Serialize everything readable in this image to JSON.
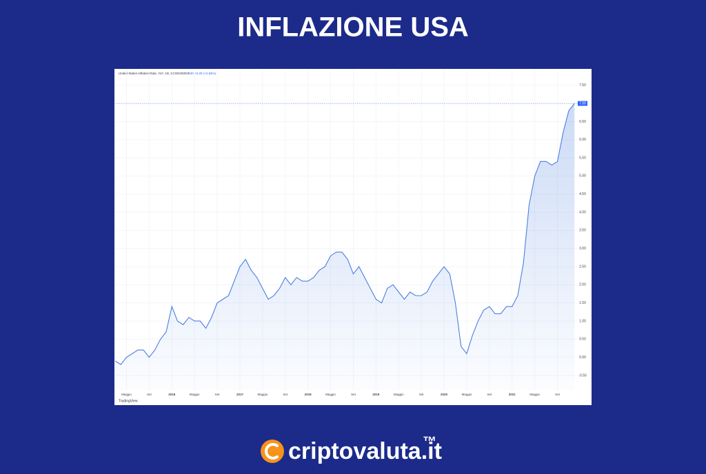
{
  "header": {
    "title": "INFLAZIONE USA"
  },
  "chart_data": {
    "type": "line",
    "legend_text": "United States Inflation Rate, YoY, 1D, ECONOMICS",
    "legend_value": "7.00 +0.20 (+2.94%)",
    "last_label": "7.00",
    "watermark": "TradingView",
    "categories": [
      null,
      null,
      "Maggio",
      null,
      null,
      null,
      "Set",
      null,
      null,
      null,
      "2016",
      null,
      null,
      null,
      "Maggio",
      null,
      null,
      null,
      "Set",
      null,
      null,
      null,
      "2017",
      null,
      null,
      null,
      "Maggio",
      null,
      null,
      null,
      "Set",
      null,
      null,
      null,
      "2018",
      null,
      null,
      null,
      "Maggio",
      null,
      null,
      null,
      "Set",
      null,
      null,
      null,
      "2019",
      null,
      null,
      null,
      "Maggio",
      null,
      null,
      null,
      "Set",
      null,
      null,
      null,
      "2020",
      null,
      null,
      null,
      "Maggio",
      null,
      null,
      null,
      "Set",
      null,
      null,
      null,
      "2021",
      null,
      null,
      null,
      "Maggio",
      null,
      null,
      null,
      "Set",
      null,
      null,
      null
    ],
    "series": [
      {
        "name": "United States Inflation Rate",
        "color": "#4a7ee0",
        "values": [
          -0.1,
          -0.2,
          0.0,
          0.1,
          0.2,
          0.2,
          0.0,
          0.2,
          0.5,
          0.7,
          1.4,
          1.0,
          0.9,
          1.1,
          1.0,
          1.0,
          0.8,
          1.1,
          1.5,
          1.6,
          1.7,
          2.1,
          2.5,
          2.7,
          2.4,
          2.2,
          1.9,
          1.6,
          1.7,
          1.9,
          2.2,
          2.0,
          2.2,
          2.1,
          2.1,
          2.2,
          2.4,
          2.5,
          2.8,
          2.9,
          2.9,
          2.7,
          2.3,
          2.5,
          2.2,
          1.9,
          1.6,
          1.5,
          1.9,
          2.0,
          1.8,
          1.6,
          1.8,
          1.7,
          1.7,
          1.8,
          2.1,
          2.3,
          2.5,
          2.3,
          1.5,
          0.3,
          0.1,
          0.6,
          1.0,
          1.3,
          1.4,
          1.2,
          1.2,
          1.4,
          1.4,
          1.7,
          2.6,
          4.2,
          5.0,
          5.4,
          5.4,
          5.3,
          5.4,
          6.2,
          6.8,
          7.0
        ]
      }
    ],
    "ylim": [
      -0.9,
      7.8
    ],
    "yticks": [
      {
        "value": -0.5,
        "label": "-0.50"
      },
      {
        "value": 0,
        "label": "0.00"
      },
      {
        "value": 0.5,
        "label": "0.50"
      },
      {
        "value": 1,
        "label": "1.00"
      },
      {
        "value": 1.5,
        "label": "1.50"
      },
      {
        "value": 2,
        "label": "2.00"
      },
      {
        "value": 2.5,
        "label": "2.50"
      },
      {
        "value": 3,
        "label": "3.00"
      },
      {
        "value": 3.5,
        "label": "3.50"
      },
      {
        "value": 4,
        "label": "4.00"
      },
      {
        "value": 4.5,
        "label": "4.50"
      },
      {
        "value": 5,
        "label": "5.00"
      },
      {
        "value": 5.5,
        "label": "5.50"
      },
      {
        "value": 6,
        "label": "6.00"
      },
      {
        "value": 6.5,
        "label": "6.50"
      },
      {
        "value": 7,
        "label": "7.00"
      },
      {
        "value": 7.5,
        "label": "7.50"
      }
    ],
    "grid": true
  },
  "footer": {
    "brand": "criptovaluta.it",
    "trademark": "™"
  }
}
